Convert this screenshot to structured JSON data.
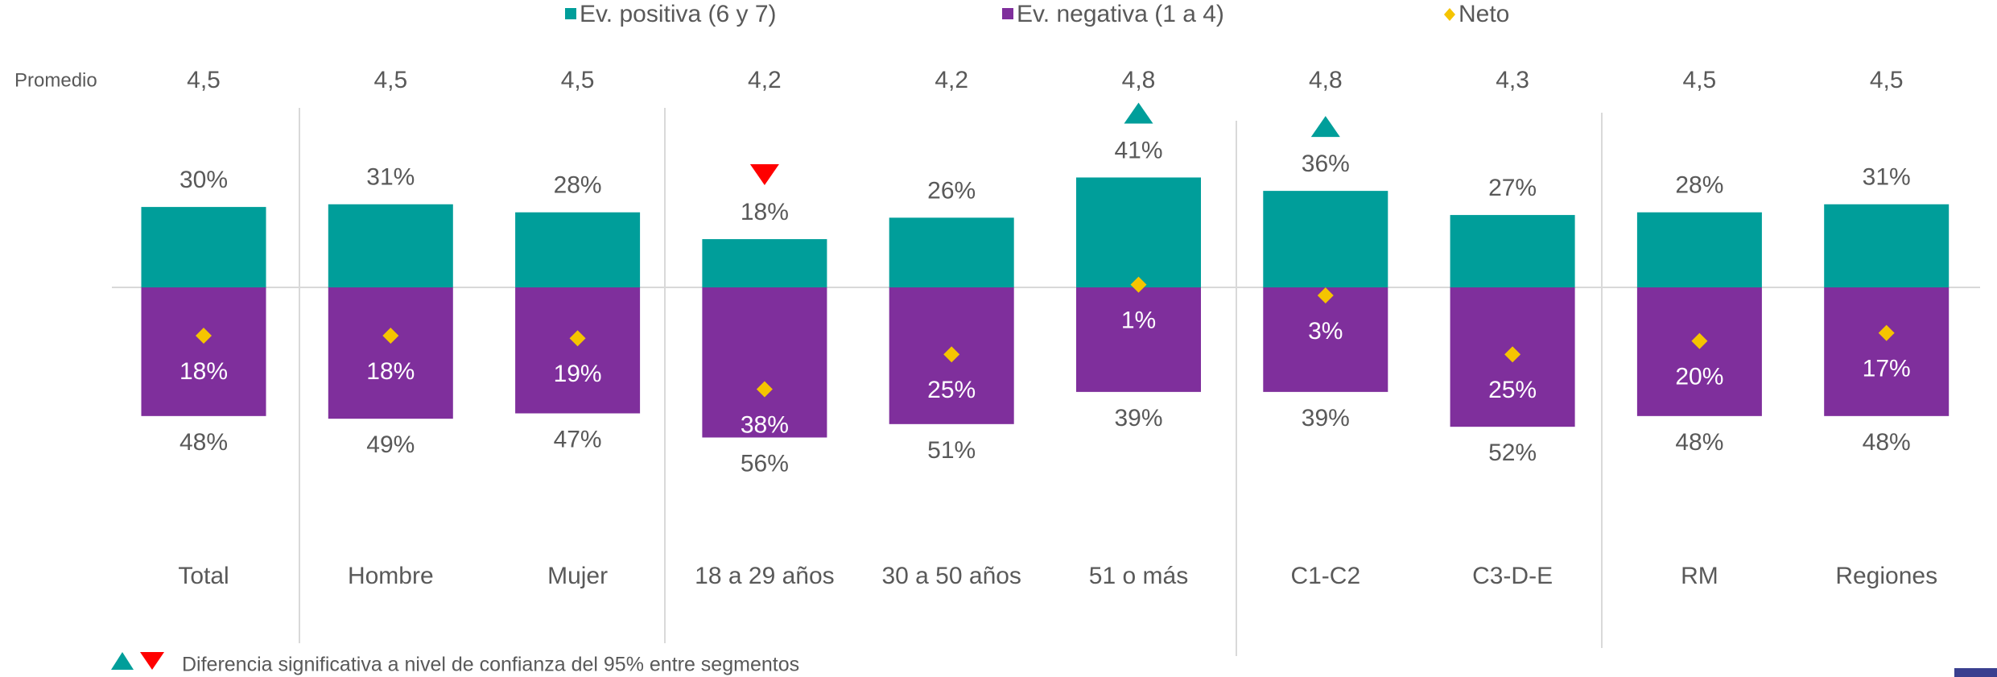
{
  "chart_data": {
    "type": "diverging-bar",
    "categories": [
      "Total",
      "Hombre",
      "Mujer",
      "18 a 29 años",
      "30 a 50 años",
      "51 o más",
      "C1-C2",
      "C3-D-E",
      "RM",
      "Regiones"
    ],
    "series": [
      {
        "name": "Ev. positiva (6 y 7)",
        "color": "#009e9a",
        "values": [
          30,
          31,
          28,
          18,
          26,
          41,
          36,
          27,
          28,
          31
        ],
        "value_labels": [
          "30%",
          "31%",
          "28%",
          "18%",
          "26%",
          "41%",
          "36%",
          "27%",
          "28%",
          "31%"
        ]
      },
      {
        "name": "Ev. negativa (1 a 4)",
        "color": "#7f2f9c",
        "values": [
          -48,
          -49,
          -47,
          -56,
          -51,
          -39,
          -39,
          -52,
          -48,
          -48
        ],
        "value_labels": [
          "48%",
          "49%",
          "47%",
          "56%",
          "51%",
          "39%",
          "39%",
          "52%",
          "48%",
          "48%"
        ]
      },
      {
        "name": "Neto",
        "color": "#f5c400",
        "values": [
          -18,
          -18,
          -19,
          -38,
          -25,
          1,
          -3,
          -25,
          -20,
          -17
        ],
        "value_labels": [
          "18%",
          "18%",
          "19%",
          "38%",
          "25%",
          "1%",
          "3%",
          "25%",
          "20%",
          "17%"
        ]
      }
    ],
    "promedio": {
      "label": "Promedio",
      "values": [
        4.5,
        4.5,
        4.5,
        4.2,
        4.2,
        4.8,
        4.8,
        4.3,
        4.5,
        4.5
      ],
      "value_labels": [
        "4,5",
        "4,5",
        "4,5",
        "4,2",
        "4,2",
        "4,8",
        "4,8",
        "4,3",
        "4,5",
        "4,5"
      ]
    },
    "significance": [
      null,
      null,
      null,
      "down",
      null,
      "up",
      "up",
      null,
      null,
      null
    ],
    "significance_colors": {
      "up": "#009e9a",
      "down": "#ff0000"
    },
    "footnote": "Diferencia significativa a nivel de confianza del 95% entre segmentos"
  }
}
